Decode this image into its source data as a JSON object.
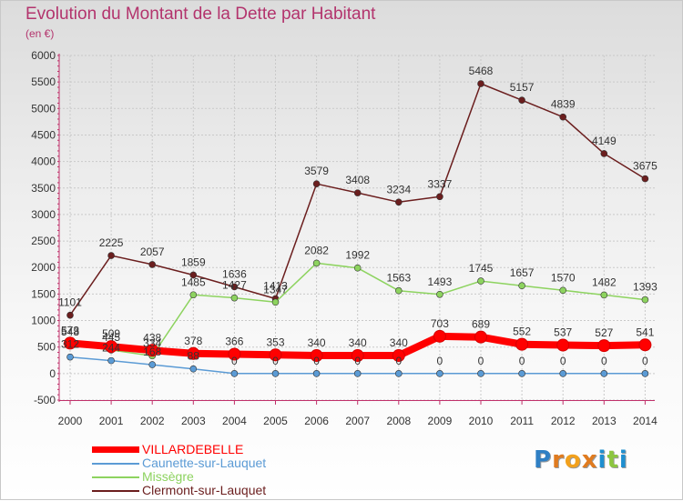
{
  "title": "Evolution du Montant de la Dette par Habitant",
  "subtitle": "(en €)",
  "brand": {
    "letters": [
      "P",
      "r",
      "o",
      "x",
      "i",
      "t",
      "i"
    ],
    "colors": [
      "#2f7fc4",
      "#e07b1f",
      "#f2a11d",
      "#e07b1f",
      "#1f8fd0",
      "#8cc63f",
      "#1f8fd0"
    ]
  },
  "chart_data": {
    "type": "line",
    "title": "Evolution du Montant de la Dette par Habitant",
    "ylabel": "(en €)",
    "xlabel": "",
    "x": [
      "2000",
      "2001",
      "2002",
      "2003",
      "2004",
      "2005",
      "2006",
      "2007",
      "2008",
      "2009",
      "2010",
      "2011",
      "2012",
      "2013",
      "2014"
    ],
    "y_ticks": [
      "-500",
      "0",
      "500",
      "1000",
      "1500",
      "2000",
      "2500",
      "3000",
      "3500",
      "4000",
      "4500",
      "5000",
      "5500",
      "6000"
    ],
    "ylim": [
      -500,
      6000
    ],
    "grid": true,
    "legend_position": "bottom-left",
    "series": [
      {
        "name": "Clermont-sur-Lauquet",
        "color": "#6b1e1e",
        "values": [
          1101,
          2225,
          2057,
          1859,
          1636,
          1413,
          3579,
          3408,
          3234,
          3337,
          5468,
          5157,
          4839,
          4149,
          3675
        ],
        "labels": [
          "1101",
          "2225",
          "2057",
          "1859",
          "1636",
          "1413",
          "3579",
          "3408",
          "3234",
          "3337",
          "5468",
          "5157",
          "4839",
          "4149",
          "3675"
        ]
      },
      {
        "name": "Missègre",
        "color": "#8dd35f",
        "values": [
          548,
          445,
          334,
          1485,
          1427,
          1347,
          2082,
          1992,
          1563,
          1493,
          1745,
          1657,
          1570,
          1482,
          1393
        ],
        "labels": [
          "548",
          "445",
          "334",
          "1485",
          "1427",
          "1347",
          "2082",
          "1992",
          "1563",
          "1493",
          "1745",
          "1657",
          "1570",
          "1482",
          "1393"
        ]
      },
      {
        "name": "Caunette-sur-Lauquet",
        "color": "#5b9bd5",
        "values": [
          312,
          244,
          168,
          88,
          0,
          0,
          0,
          0,
          0,
          0,
          0,
          0,
          0,
          0,
          0
        ],
        "labels": [
          "312",
          "244",
          "168",
          "88",
          "0",
          "0",
          "0",
          "0",
          "0",
          "0",
          "0",
          "0",
          "0",
          "0",
          "0"
        ]
      },
      {
        "name": "VILLARDEBELLE",
        "color": "#ff0000",
        "values": [
          573,
          509,
          438,
          378,
          366,
          353,
          340,
          340,
          340,
          703,
          689,
          552,
          537,
          527,
          541
        ],
        "labels": [
          "573",
          "509",
          "438",
          "378",
          "366",
          "353",
          "340",
          "340",
          "340",
          "703",
          "689",
          "552",
          "537",
          "527",
          "541"
        ]
      }
    ]
  },
  "legend": [
    {
      "name": "VILLARDEBELLE",
      "color": "#ff0000"
    },
    {
      "name": "Caunette-sur-Lauquet",
      "color": "#5b9bd5"
    },
    {
      "name": "Missègre",
      "color": "#8dd35f"
    },
    {
      "name": "Clermont-sur-Lauquet",
      "color": "#6b1e1e"
    }
  ]
}
